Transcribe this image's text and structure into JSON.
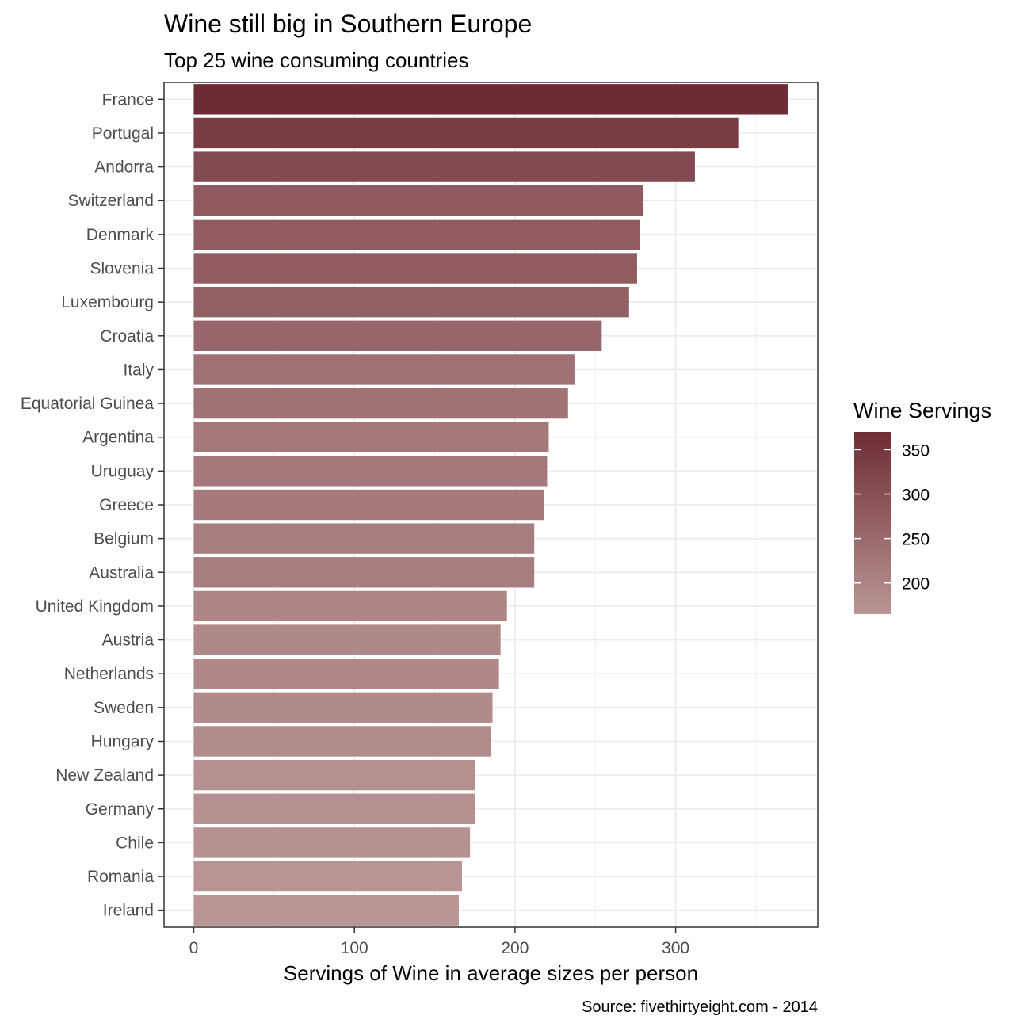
{
  "chart_data": {
    "type": "bar",
    "orientation": "horizontal",
    "title": "Wine still big in Southern Europe",
    "subtitle": "Top 25 wine consuming countries",
    "xlabel": "Servings of Wine in average sizes per person",
    "ylabel": "",
    "caption": "Source: fivethirtyeight.com - 2014",
    "xlim": [
      -18.5,
      388.5
    ],
    "x_ticks": [
      0,
      100,
      200,
      300
    ],
    "grid": true,
    "categories": [
      "France",
      "Portugal",
      "Andorra",
      "Switzerland",
      "Denmark",
      "Slovenia",
      "Luxembourg",
      "Croatia",
      "Italy",
      "Equatorial Guinea",
      "Argentina",
      "Uruguay",
      "Greece",
      "Belgium",
      "Australia",
      "United Kingdom",
      "Austria",
      "Netherlands",
      "Sweden",
      "Hungary",
      "New Zealand",
      "Germany",
      "Chile",
      "Romania",
      "Ireland"
    ],
    "values": [
      370,
      339,
      312,
      280,
      278,
      276,
      271,
      254,
      237,
      233,
      221,
      220,
      218,
      212,
      212,
      195,
      191,
      190,
      186,
      185,
      175,
      175,
      172,
      167,
      165
    ],
    "legend": {
      "title": "Wine Servings",
      "position": "right",
      "ticks": [
        200,
        250,
        300,
        350
      ],
      "range": [
        165,
        370
      ],
      "color_low": "#b99595",
      "color_high": "#6e2c36"
    }
  }
}
